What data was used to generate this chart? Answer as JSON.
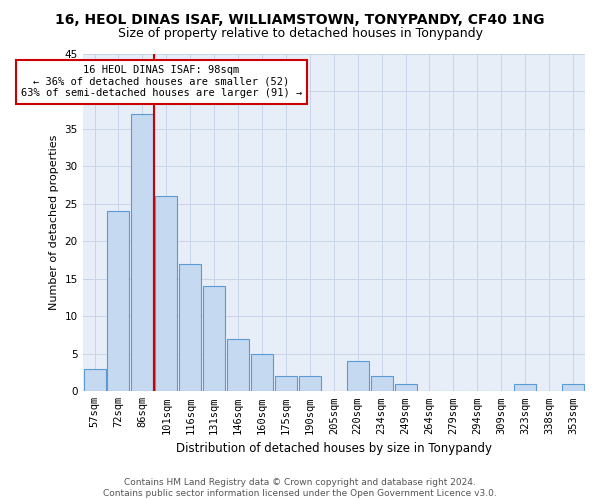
{
  "title_line1": "16, HEOL DINAS ISAF, WILLIAMSTOWN, TONYPANDY, CF40 1NG",
  "title_line2": "Size of property relative to detached houses in Tonypandy",
  "xlabel": "Distribution of detached houses by size in Tonypandy",
  "ylabel": "Number of detached properties",
  "categories": [
    "57sqm",
    "72sqm",
    "86sqm",
    "101sqm",
    "116sqm",
    "131sqm",
    "146sqm",
    "160sqm",
    "175sqm",
    "190sqm",
    "205sqm",
    "220sqm",
    "234sqm",
    "249sqm",
    "264sqm",
    "279sqm",
    "294sqm",
    "309sqm",
    "323sqm",
    "338sqm",
    "353sqm"
  ],
  "values": [
    3,
    24,
    37,
    26,
    17,
    14,
    7,
    5,
    2,
    2,
    0,
    4,
    2,
    1,
    0,
    0,
    0,
    0,
    1,
    0,
    1
  ],
  "bar_color": "#c5d9f1",
  "bar_edge_color": "#5b9bd5",
  "bar_linewidth": 0.8,
  "vline_index": 3,
  "vline_color": "#cc0000",
  "annotation_text": "16 HEOL DINAS ISAF: 98sqm\n← 36% of detached houses are smaller (52)\n63% of semi-detached houses are larger (91) →",
  "annotation_box_color": "#ffffff",
  "annotation_box_edge_color": "#cc0000",
  "ylim": [
    0,
    45
  ],
  "yticks": [
    0,
    5,
    10,
    15,
    20,
    25,
    30,
    35,
    40,
    45
  ],
  "grid_color": "#c8d4e8",
  "bg_color": "#e8eef8",
  "footer_text": "Contains HM Land Registry data © Crown copyright and database right 2024.\nContains public sector information licensed under the Open Government Licence v3.0.",
  "title1_fontsize": 10,
  "title2_fontsize": 9,
  "xlabel_fontsize": 8.5,
  "ylabel_fontsize": 8,
  "tick_fontsize": 7.5,
  "annotation_fontsize": 7.5,
  "footer_fontsize": 6.5
}
